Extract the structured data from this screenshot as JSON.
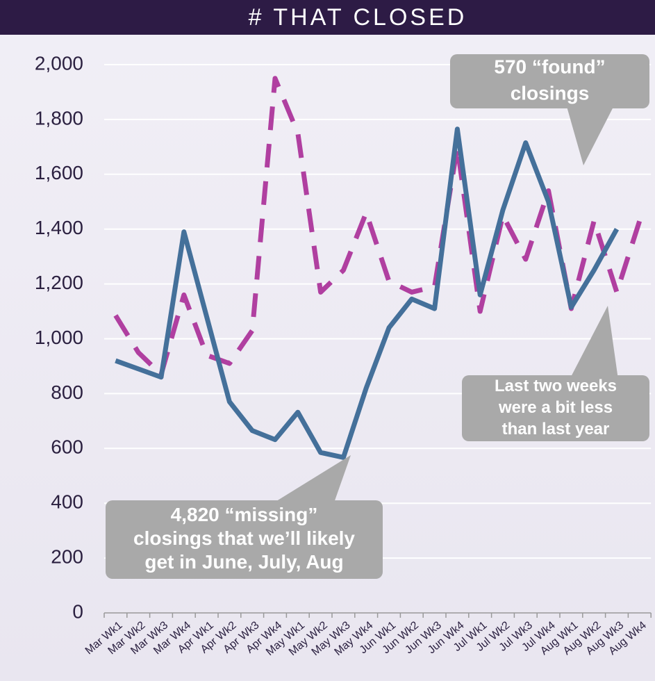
{
  "chart_data": {
    "type": "line",
    "title": "# THAT CLOSED",
    "categories": [
      "Mar Wk1",
      "Mar Wk2",
      "Mar Wk3",
      "Mar Wk4",
      "Apr Wk1",
      "Apr Wk2",
      "Apr Wk3",
      "Apr Wk4",
      "May Wk1",
      "May Wk2",
      "May Wk3",
      "May Wk4",
      "Jun Wk1",
      "Jun Wk2",
      "Jun Wk3",
      "Jun Wk4",
      "Jul Wk1",
      "Jul Wk2",
      "Jul Wk3",
      "Jul Wk4",
      "Aug Wk1",
      "Aug Wk2",
      "Aug Wk3",
      "Aug Wk4"
    ],
    "series": [
      {
        "color": "#b03fa0",
        "dashed": true,
        "values": [
          1085,
          950,
          870,
          1160,
          940,
          910,
          1030,
          1950,
          1750,
          1170,
          1250,
          1460,
          1210,
          1170,
          1190,
          1700,
          1100,
          1450,
          1290,
          1540,
          1110,
          1430,
          1170,
          1430
        ]
      },
      {
        "color": "#44709a",
        "dashed": false,
        "values": [
          920,
          890,
          860,
          1390,
          1080,
          770,
          665,
          632,
          732,
          585,
          567,
          820,
          1040,
          1145,
          1110,
          1765,
          1160,
          1470,
          1715,
          1500,
          1115,
          1250,
          1400,
          null
        ]
      }
    ],
    "ylim": [
      0,
      2000
    ],
    "yticks": [
      0,
      200,
      400,
      600,
      800,
      {
        "value": 1000,
        "label": "1,000"
      },
      {
        "value": 1200,
        "label": "1,200"
      },
      {
        "value": 1400,
        "label": "1,400"
      },
      {
        "value": 1600,
        "label": "1,600"
      },
      {
        "value": 1800,
        "label": "1,800"
      },
      {
        "value": 2000,
        "label": "2,000"
      }
    ],
    "grid": true,
    "annotations": [
      {
        "text": [
          "570 “found”",
          "closings"
        ]
      },
      {
        "text": [
          "4,820 “missing”",
          "closings that we’ll likely",
          "get in June, July, Aug"
        ]
      },
      {
        "text": [
          "Last two weeks",
          "were a bit less",
          "than last year"
        ]
      }
    ]
  }
}
